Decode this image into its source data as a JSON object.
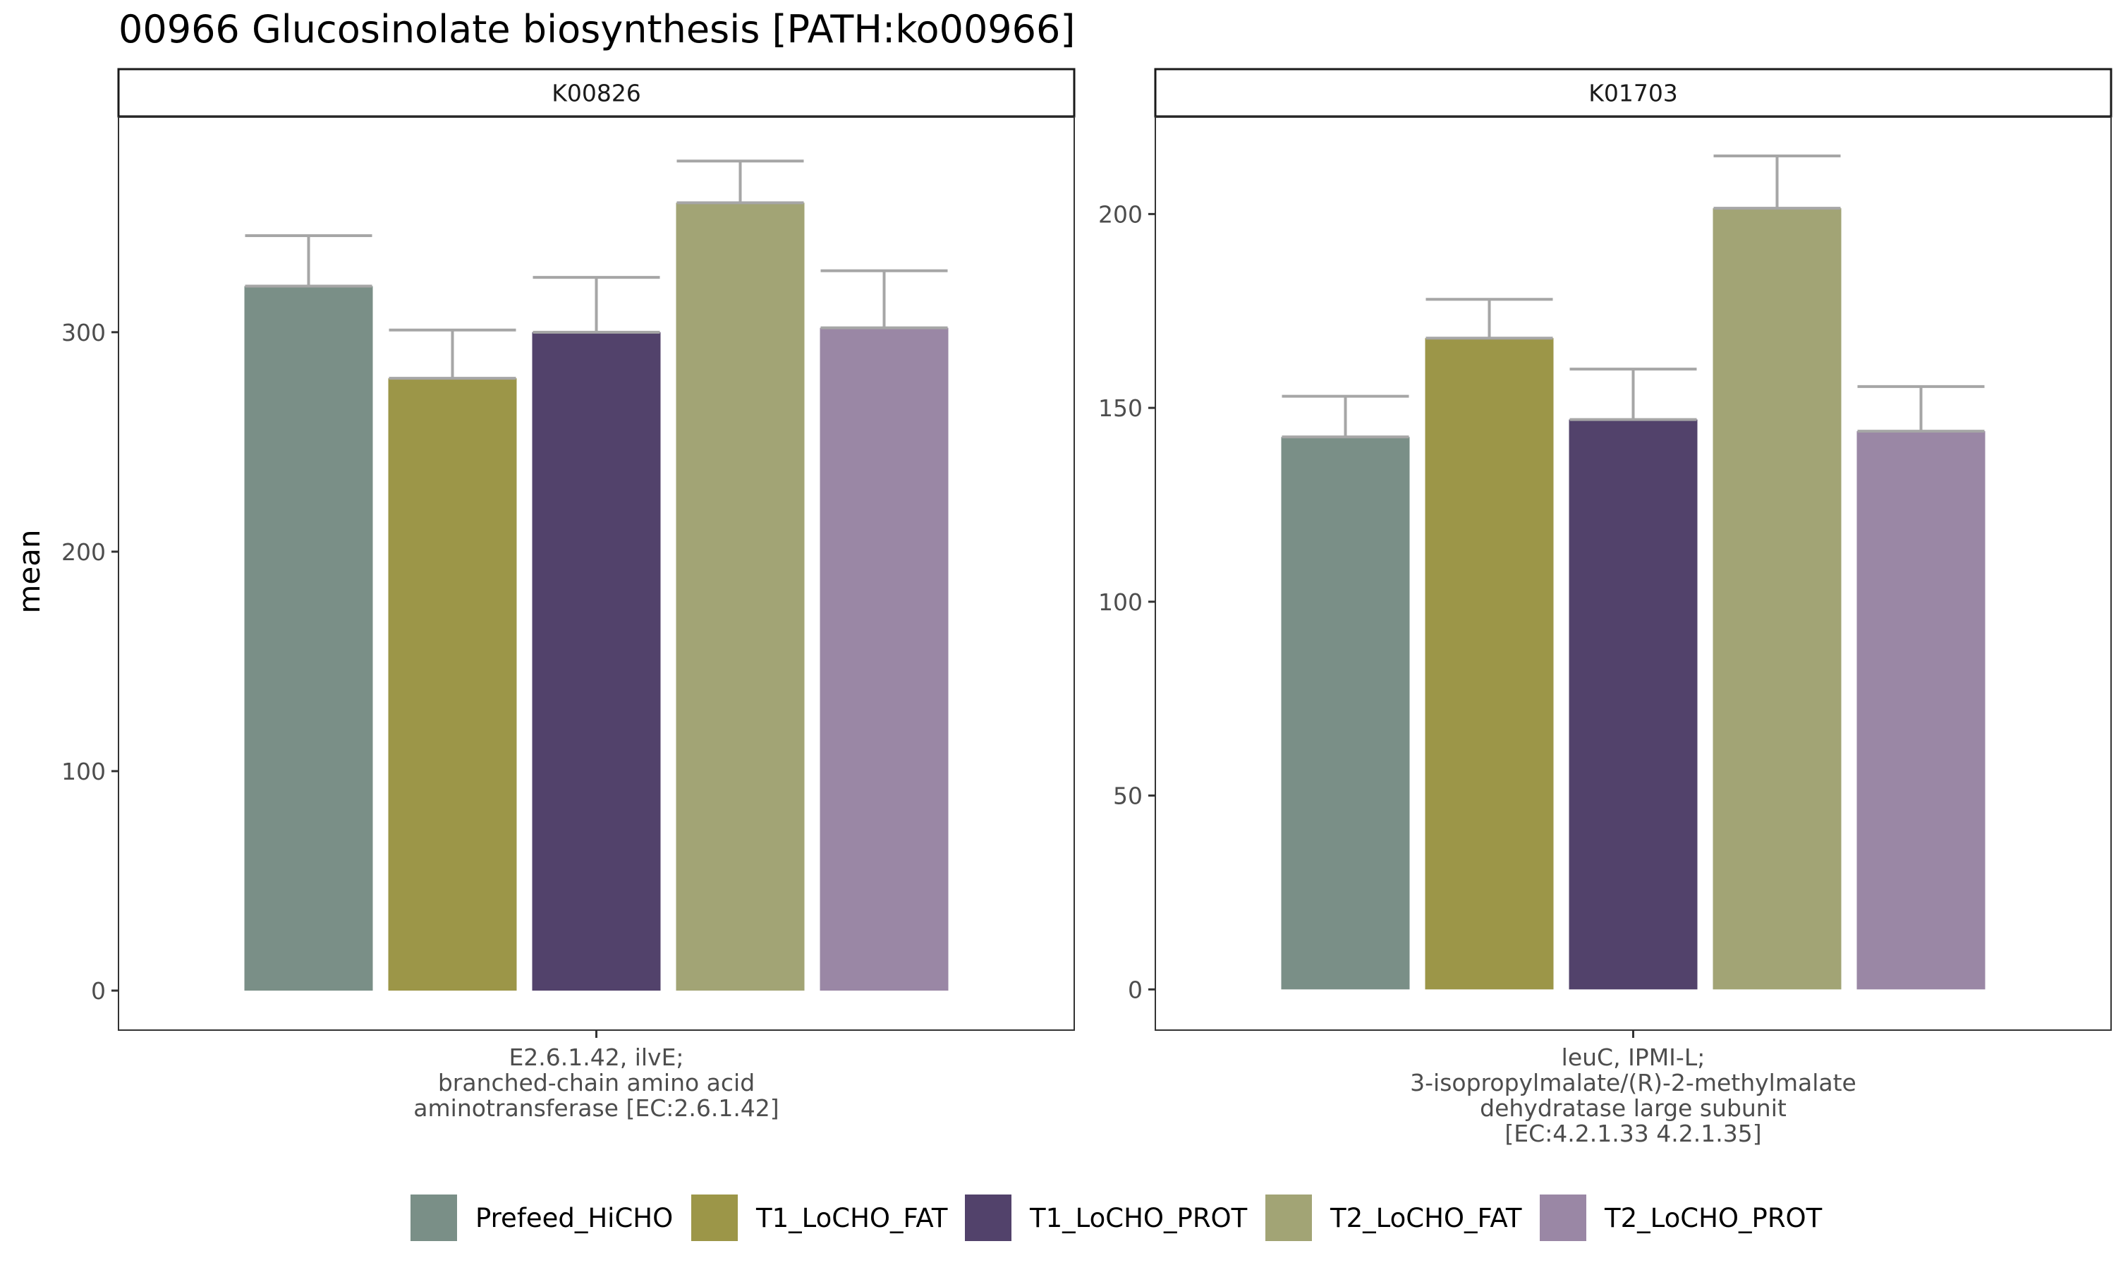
{
  "chart_data": {
    "type": "bar",
    "title": "00966 Glucosinolate biosynthesis [PATH:ko00966]",
    "ylabel": "mean",
    "legend_position": "bottom",
    "grid": false,
    "groups": [
      "Prefeed_HiCHO",
      "T1_LoCHO_FAT",
      "T1_LoCHO_PROT",
      "T2_LoCHO_FAT",
      "T2_LoCHO_PROT"
    ],
    "colors": {
      "Prefeed_HiCHO": "#7a8f87",
      "T1_LoCHO_FAT": "#9c9648",
      "T1_LoCHO_PROT": "#52426b",
      "T2_LoCHO_FAT": "#a2a475",
      "T2_LoCHO_PROT": "#9a87a5"
    },
    "error_color": "#a6a6a6",
    "panels": [
      {
        "facet": "K00826",
        "x_label": [
          "E2.6.1.42, ilvE;",
          "branched-chain amino acid",
          "aminotransferase [EC:2.6.1.42]"
        ],
        "ylim": [
          -18,
          398
        ],
        "yticks": [
          0,
          100,
          200,
          300
        ],
        "values": [
          321,
          279,
          300,
          359,
          302
        ],
        "errors": [
          23,
          22,
          25,
          19,
          26
        ]
      },
      {
        "facet": "K01703",
        "x_label": [
          "leuC, IPMI-L;",
          "3-isopropylmalate/(R)-2-methylmalate",
          "dehydratase large subunit",
          "[EC:4.2.1.33 4.2.1.35]"
        ],
        "ylim": [
          -10.5,
          225
        ],
        "yticks": [
          0,
          50,
          100,
          150,
          200
        ],
        "values": [
          142.5,
          168,
          147,
          201.5,
          144
        ],
        "errors": [
          10.5,
          10,
          13,
          13.5,
          11.5
        ]
      }
    ]
  }
}
